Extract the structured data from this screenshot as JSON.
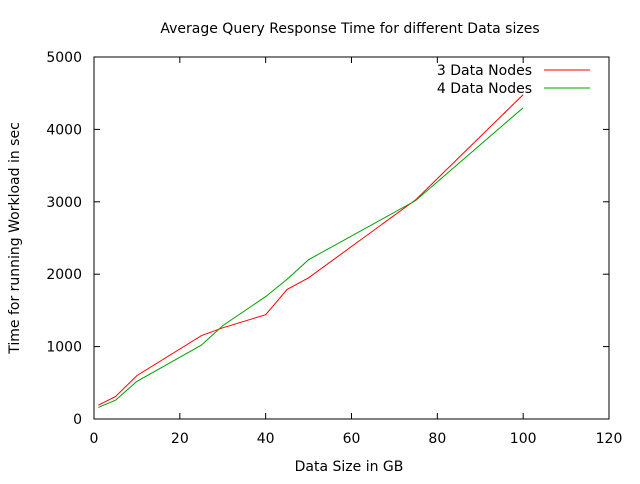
{
  "chart_data": {
    "type": "line",
    "title": "Average Query Response Time for different Data sizes",
    "xlabel": "Data Size in GB",
    "ylabel": "Time for running Workload in sec",
    "xlim": [
      0,
      120
    ],
    "ylim": [
      0,
      5000
    ],
    "xticks": [
      0,
      20,
      40,
      60,
      80,
      100,
      120
    ],
    "yticks": [
      0,
      1000,
      2000,
      3000,
      4000,
      5000
    ],
    "grid": false,
    "legend_position": "top-right",
    "series": [
      {
        "name": "3 Data Nodes",
        "color": "#ff0000",
        "points": [
          [
            1,
            190
          ],
          [
            5,
            310
          ],
          [
            10,
            600
          ],
          [
            25,
            1150
          ],
          [
            30,
            1260
          ],
          [
            40,
            1440
          ],
          [
            45,
            1790
          ],
          [
            50,
            1950
          ],
          [
            75,
            3030
          ],
          [
            100,
            4480
          ]
        ]
      },
      {
        "name": "4 Data Nodes",
        "color": "#00a000",
        "points": [
          [
            1,
            160
          ],
          [
            5,
            260
          ],
          [
            10,
            520
          ],
          [
            25,
            1020
          ],
          [
            30,
            1290
          ],
          [
            40,
            1690
          ],
          [
            45,
            1930
          ],
          [
            50,
            2200
          ],
          [
            75,
            3020
          ],
          [
            100,
            4300
          ]
        ]
      }
    ]
  }
}
